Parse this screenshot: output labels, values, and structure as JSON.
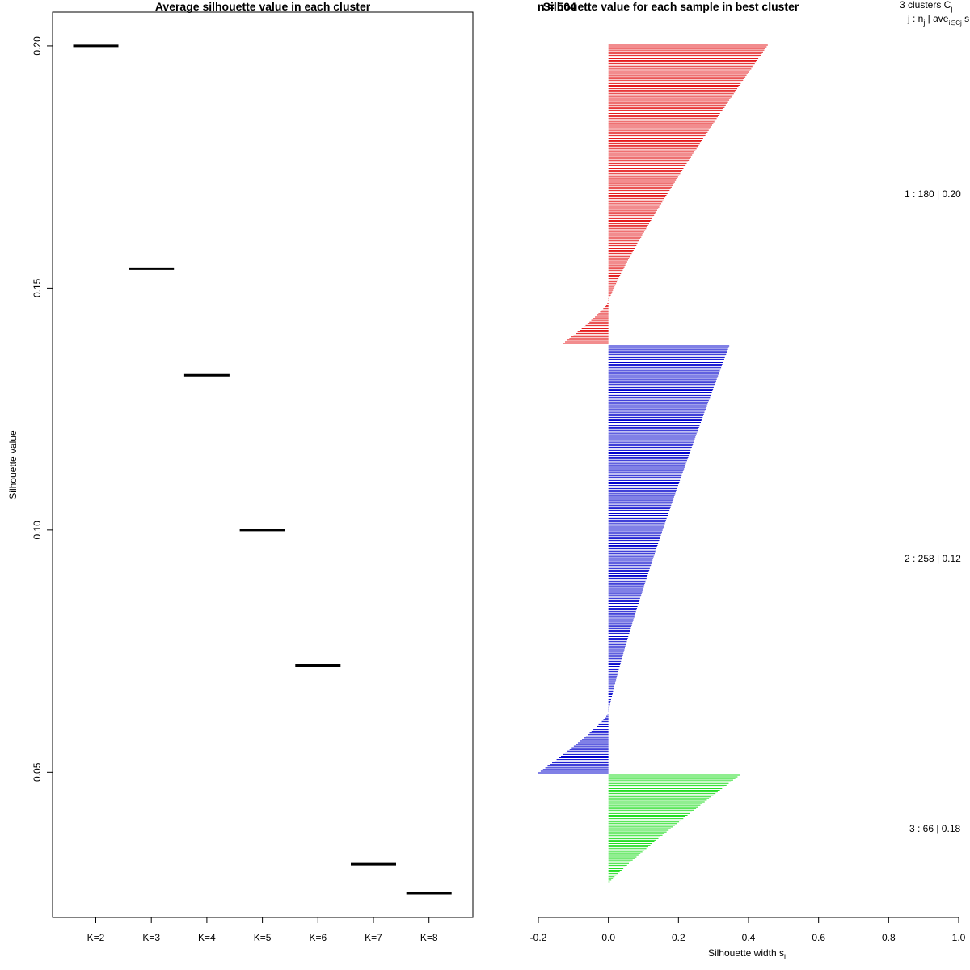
{
  "chart_data": [
    {
      "type": "scatter",
      "title": "Average silhouette value in each cluster",
      "xlabel": "",
      "ylabel": "Silhouette value",
      "categories": [
        "K=2",
        "K=3",
        "K=4",
        "K=5",
        "K=6",
        "K=7",
        "K=8"
      ],
      "values": [
        0.2,
        0.154,
        0.132,
        0.1,
        0.072,
        0.031,
        0.025
      ],
      "ylim": [
        0.02,
        0.207
      ],
      "yticks": [
        "0.05",
        "0.10",
        "0.15",
        "0.20"
      ]
    },
    {
      "type": "bar",
      "title": "Silhouette value for each sample in best cluster",
      "overlap_text": "n = 504",
      "xlabel": "Silhouette width s",
      "xlabel_sub": "i",
      "xlim": [
        -0.2,
        1.0
      ],
      "xticks": [
        "-0.2",
        "0.0",
        "0.2",
        "0.4",
        "0.6",
        "0.8",
        "1.0"
      ],
      "legend_header": {
        "line1": "3  clusters  C",
        "line1_sub": "j",
        "line2": "j :  n",
        "line2_sub": "j",
        "line2_rest": " | ave",
        "line2_sub2": "i∈Cj",
        "line2_end": "  s"
      },
      "clusters": [
        {
          "id": 1,
          "n": 180,
          "avg": 0.2,
          "label": "1 :   180  |  0.20",
          "color": "#e41a1c",
          "max": 0.455,
          "min": -0.13
        },
        {
          "id": 2,
          "n": 258,
          "avg": 0.12,
          "label": "2 :   258  |  0.12",
          "color": "#0000cc",
          "max": 0.345,
          "min": -0.2
        },
        {
          "id": 3,
          "n": 66,
          "avg": 0.18,
          "label": "3 :   66  |  0.18",
          "color": "#22dd22",
          "max": 0.375,
          "min": 0.0
        }
      ]
    }
  ]
}
